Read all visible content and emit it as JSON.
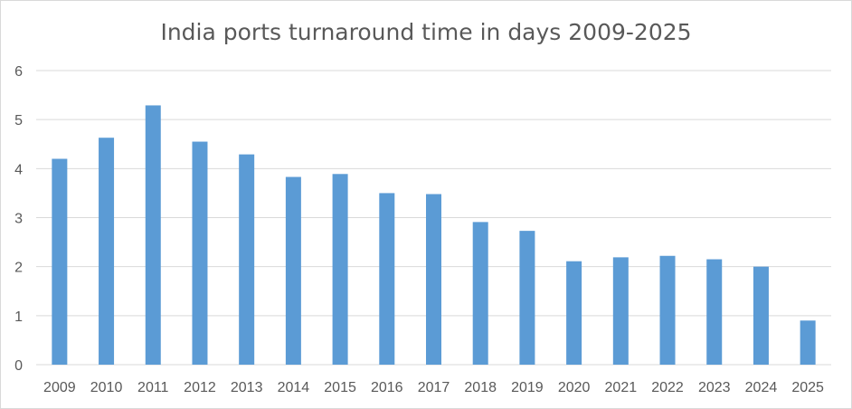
{
  "chart_data": {
    "type": "bar",
    "title": "India ports turnaround time in days 2009-2025",
    "xlabel": "",
    "ylabel": "",
    "categories": [
      "2009",
      "2010",
      "2011",
      "2012",
      "2013",
      "2014",
      "2015",
      "2016",
      "2017",
      "2018",
      "2019",
      "2020",
      "2021",
      "2022",
      "2023",
      "2024",
      "2025"
    ],
    "values": [
      4.2,
      4.63,
      5.29,
      4.55,
      4.29,
      3.83,
      3.89,
      3.5,
      3.48,
      2.91,
      2.73,
      2.11,
      2.19,
      2.22,
      2.15,
      2.0,
      0.9
    ],
    "ylim": [
      0,
      6
    ],
    "yticks": [
      "0",
      "1",
      "2",
      "3",
      "4",
      "5",
      "6"
    ],
    "grid": true,
    "legend": "none",
    "colors": {
      "bar": "#5b9bd5",
      "grid": "#d9d9d9",
      "text": "#595959"
    }
  }
}
